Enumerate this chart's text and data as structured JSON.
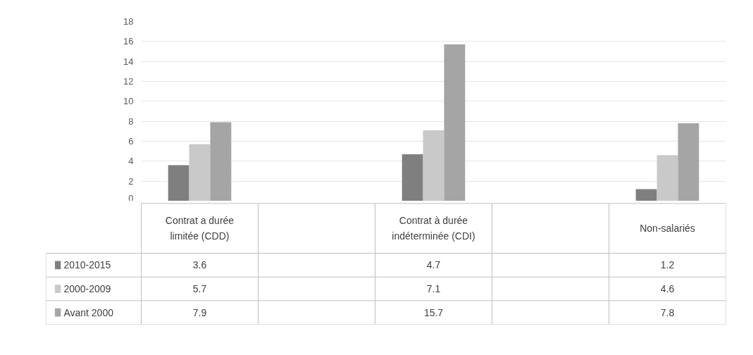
{
  "chart_data": {
    "type": "bar",
    "categories": [
      "Contrat a durée limitée (CDD)",
      null,
      "Contrat à durée indéterminée (CDI)",
      null,
      "Non-salariés"
    ],
    "series": [
      {
        "name": "2010-2015",
        "color": "#7f7f7f",
        "values": [
          3.6,
          null,
          4.7,
          null,
          1.2
        ]
      },
      {
        "name": "2000-2009",
        "color": "#c9c9c9",
        "values": [
          5.7,
          null,
          7.1,
          null,
          4.6
        ]
      },
      {
        "name": "Avant 2000",
        "color": "#a5a5a5",
        "values": [
          7.9,
          null,
          15.7,
          null,
          7.8
        ]
      }
    ],
    "ylim": [
      0,
      18
    ],
    "yticks": [
      0,
      2,
      4,
      6,
      8,
      10,
      12,
      14,
      16,
      18
    ],
    "grid": "y",
    "legend": "bottom",
    "data_labels": true
  }
}
